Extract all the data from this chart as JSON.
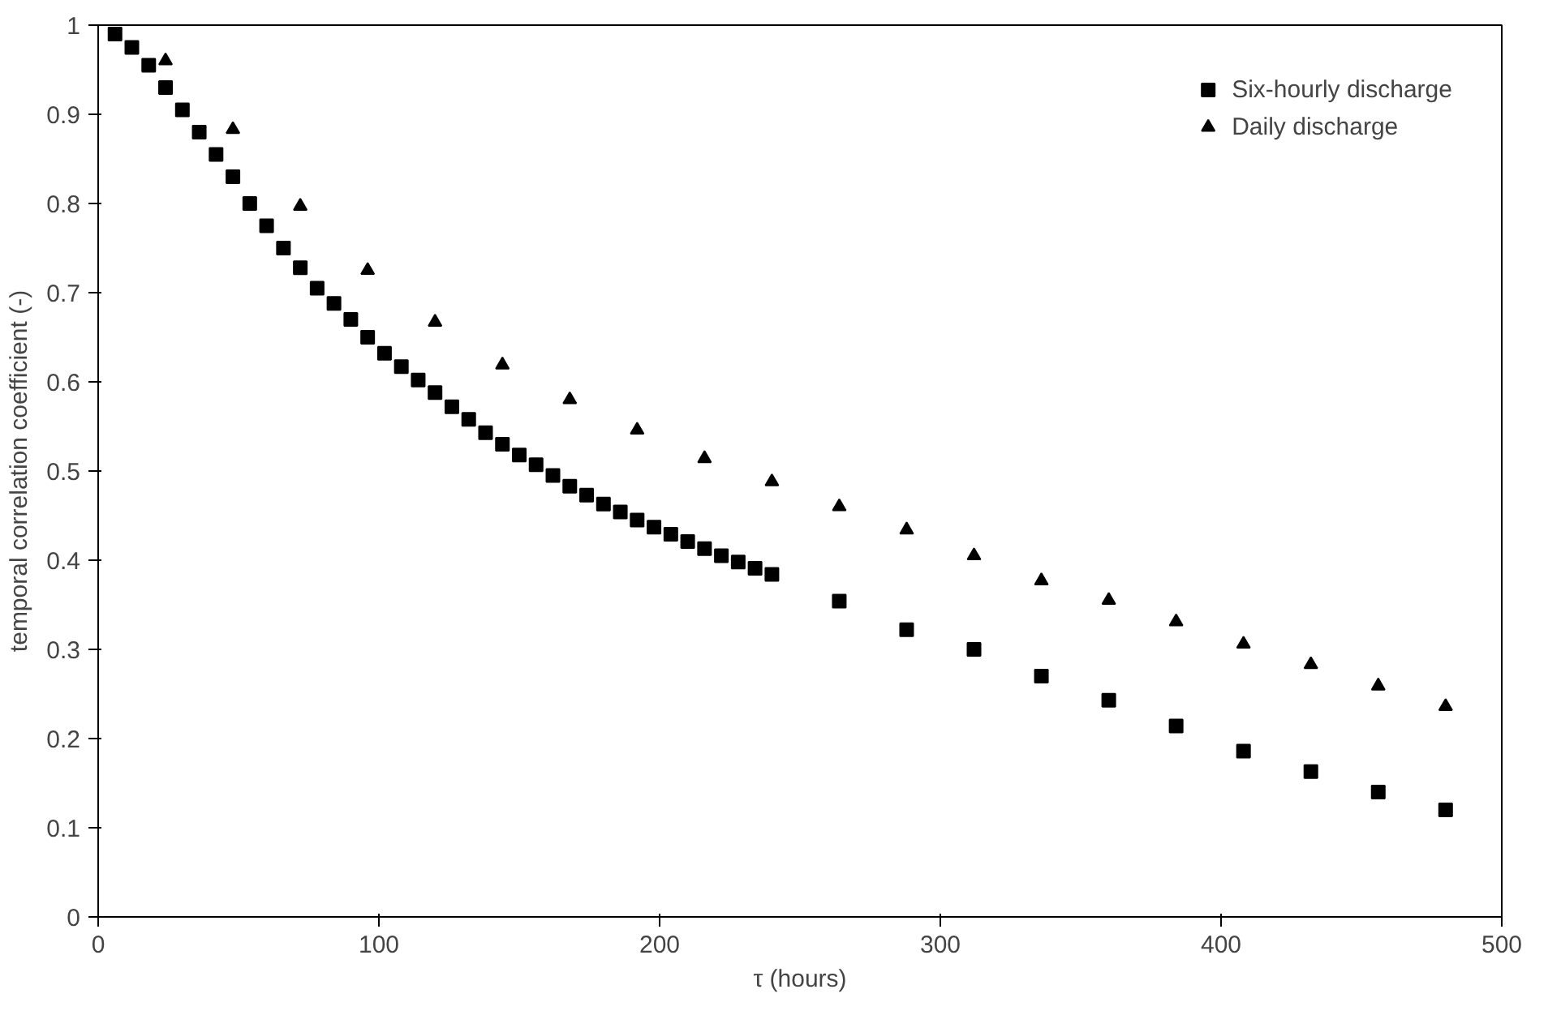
{
  "chart_data": {
    "type": "scatter",
    "xlabel": "τ (hours)",
    "ylabel": "temporal correlation coefficient (-)",
    "xlim": [
      0,
      500
    ],
    "xticks": [
      0,
      100,
      200,
      300,
      400,
      500
    ],
    "ylim": [
      0,
      1
    ],
    "yticks": [
      0,
      0.1,
      0.2,
      0.3,
      0.4,
      0.5,
      0.6,
      0.7,
      0.8,
      0.9,
      1
    ],
    "grid": false,
    "legend": "top right",
    "series": [
      {
        "name": "Six-hourly discharge",
        "color": "#000000",
        "marker": "square",
        "x": [
          6,
          12,
          18,
          24,
          30,
          36,
          42,
          48,
          54,
          60,
          66,
          72,
          78,
          84,
          90,
          96,
          102,
          108,
          114,
          120,
          126,
          132,
          138,
          144,
          150,
          156,
          162,
          168,
          174,
          180,
          186,
          192,
          198,
          204,
          210,
          216,
          222,
          228,
          234,
          240,
          264,
          288,
          312,
          336,
          360,
          384,
          408,
          432,
          456,
          480
        ],
        "values": [
          0.99,
          0.975,
          0.955,
          0.93,
          0.905,
          0.88,
          0.855,
          0.83,
          0.8,
          0.775,
          0.75,
          0.728,
          0.705,
          0.688,
          0.67,
          0.65,
          0.632,
          0.617,
          0.602,
          0.588,
          0.572,
          0.558,
          0.543,
          0.53,
          0.518,
          0.507,
          0.495,
          0.483,
          0.473,
          0.463,
          0.454,
          0.445,
          0.437,
          0.429,
          0.421,
          0.413,
          0.405,
          0.398,
          0.391,
          0.384,
          0.354,
          0.322,
          0.3,
          0.27,
          0.243,
          0.214,
          0.186,
          0.163,
          0.14,
          0.12
        ]
      },
      {
        "name": "Daily discharge",
        "color": "#000000",
        "marker": "triangle",
        "x": [
          24,
          48,
          72,
          96,
          120,
          144,
          168,
          192,
          216,
          240,
          264,
          288,
          312,
          336,
          360,
          384,
          408,
          432,
          456,
          480
        ],
        "values": [
          0.96,
          0.883,
          0.797,
          0.725,
          0.667,
          0.619,
          0.58,
          0.546,
          0.514,
          0.488,
          0.46,
          0.434,
          0.405,
          0.377,
          0.355,
          0.331,
          0.306,
          0.283,
          0.259,
          0.236
        ]
      }
    ]
  }
}
